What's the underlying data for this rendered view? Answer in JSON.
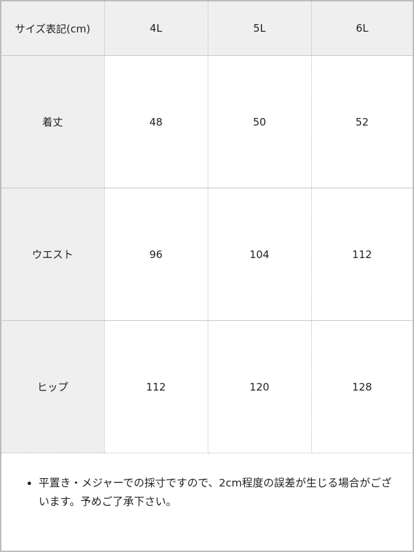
{
  "table": {
    "header": [
      "サイズ表記(cm)",
      "4L",
      "5L",
      "6L"
    ],
    "rows": [
      {
        "label": "着丈",
        "values": [
          "48",
          "50",
          "52"
        ]
      },
      {
        "label": "ウエスト",
        "values": [
          "96",
          "104",
          "112"
        ]
      },
      {
        "label": "ヒップ",
        "values": [
          "112",
          "120",
          "128"
        ]
      }
    ]
  },
  "notes": [
    "平置き・メジャーでの採寸ですので、2cm程度の誤差が生じる場合がございます。予めご了承下さい。"
  ]
}
